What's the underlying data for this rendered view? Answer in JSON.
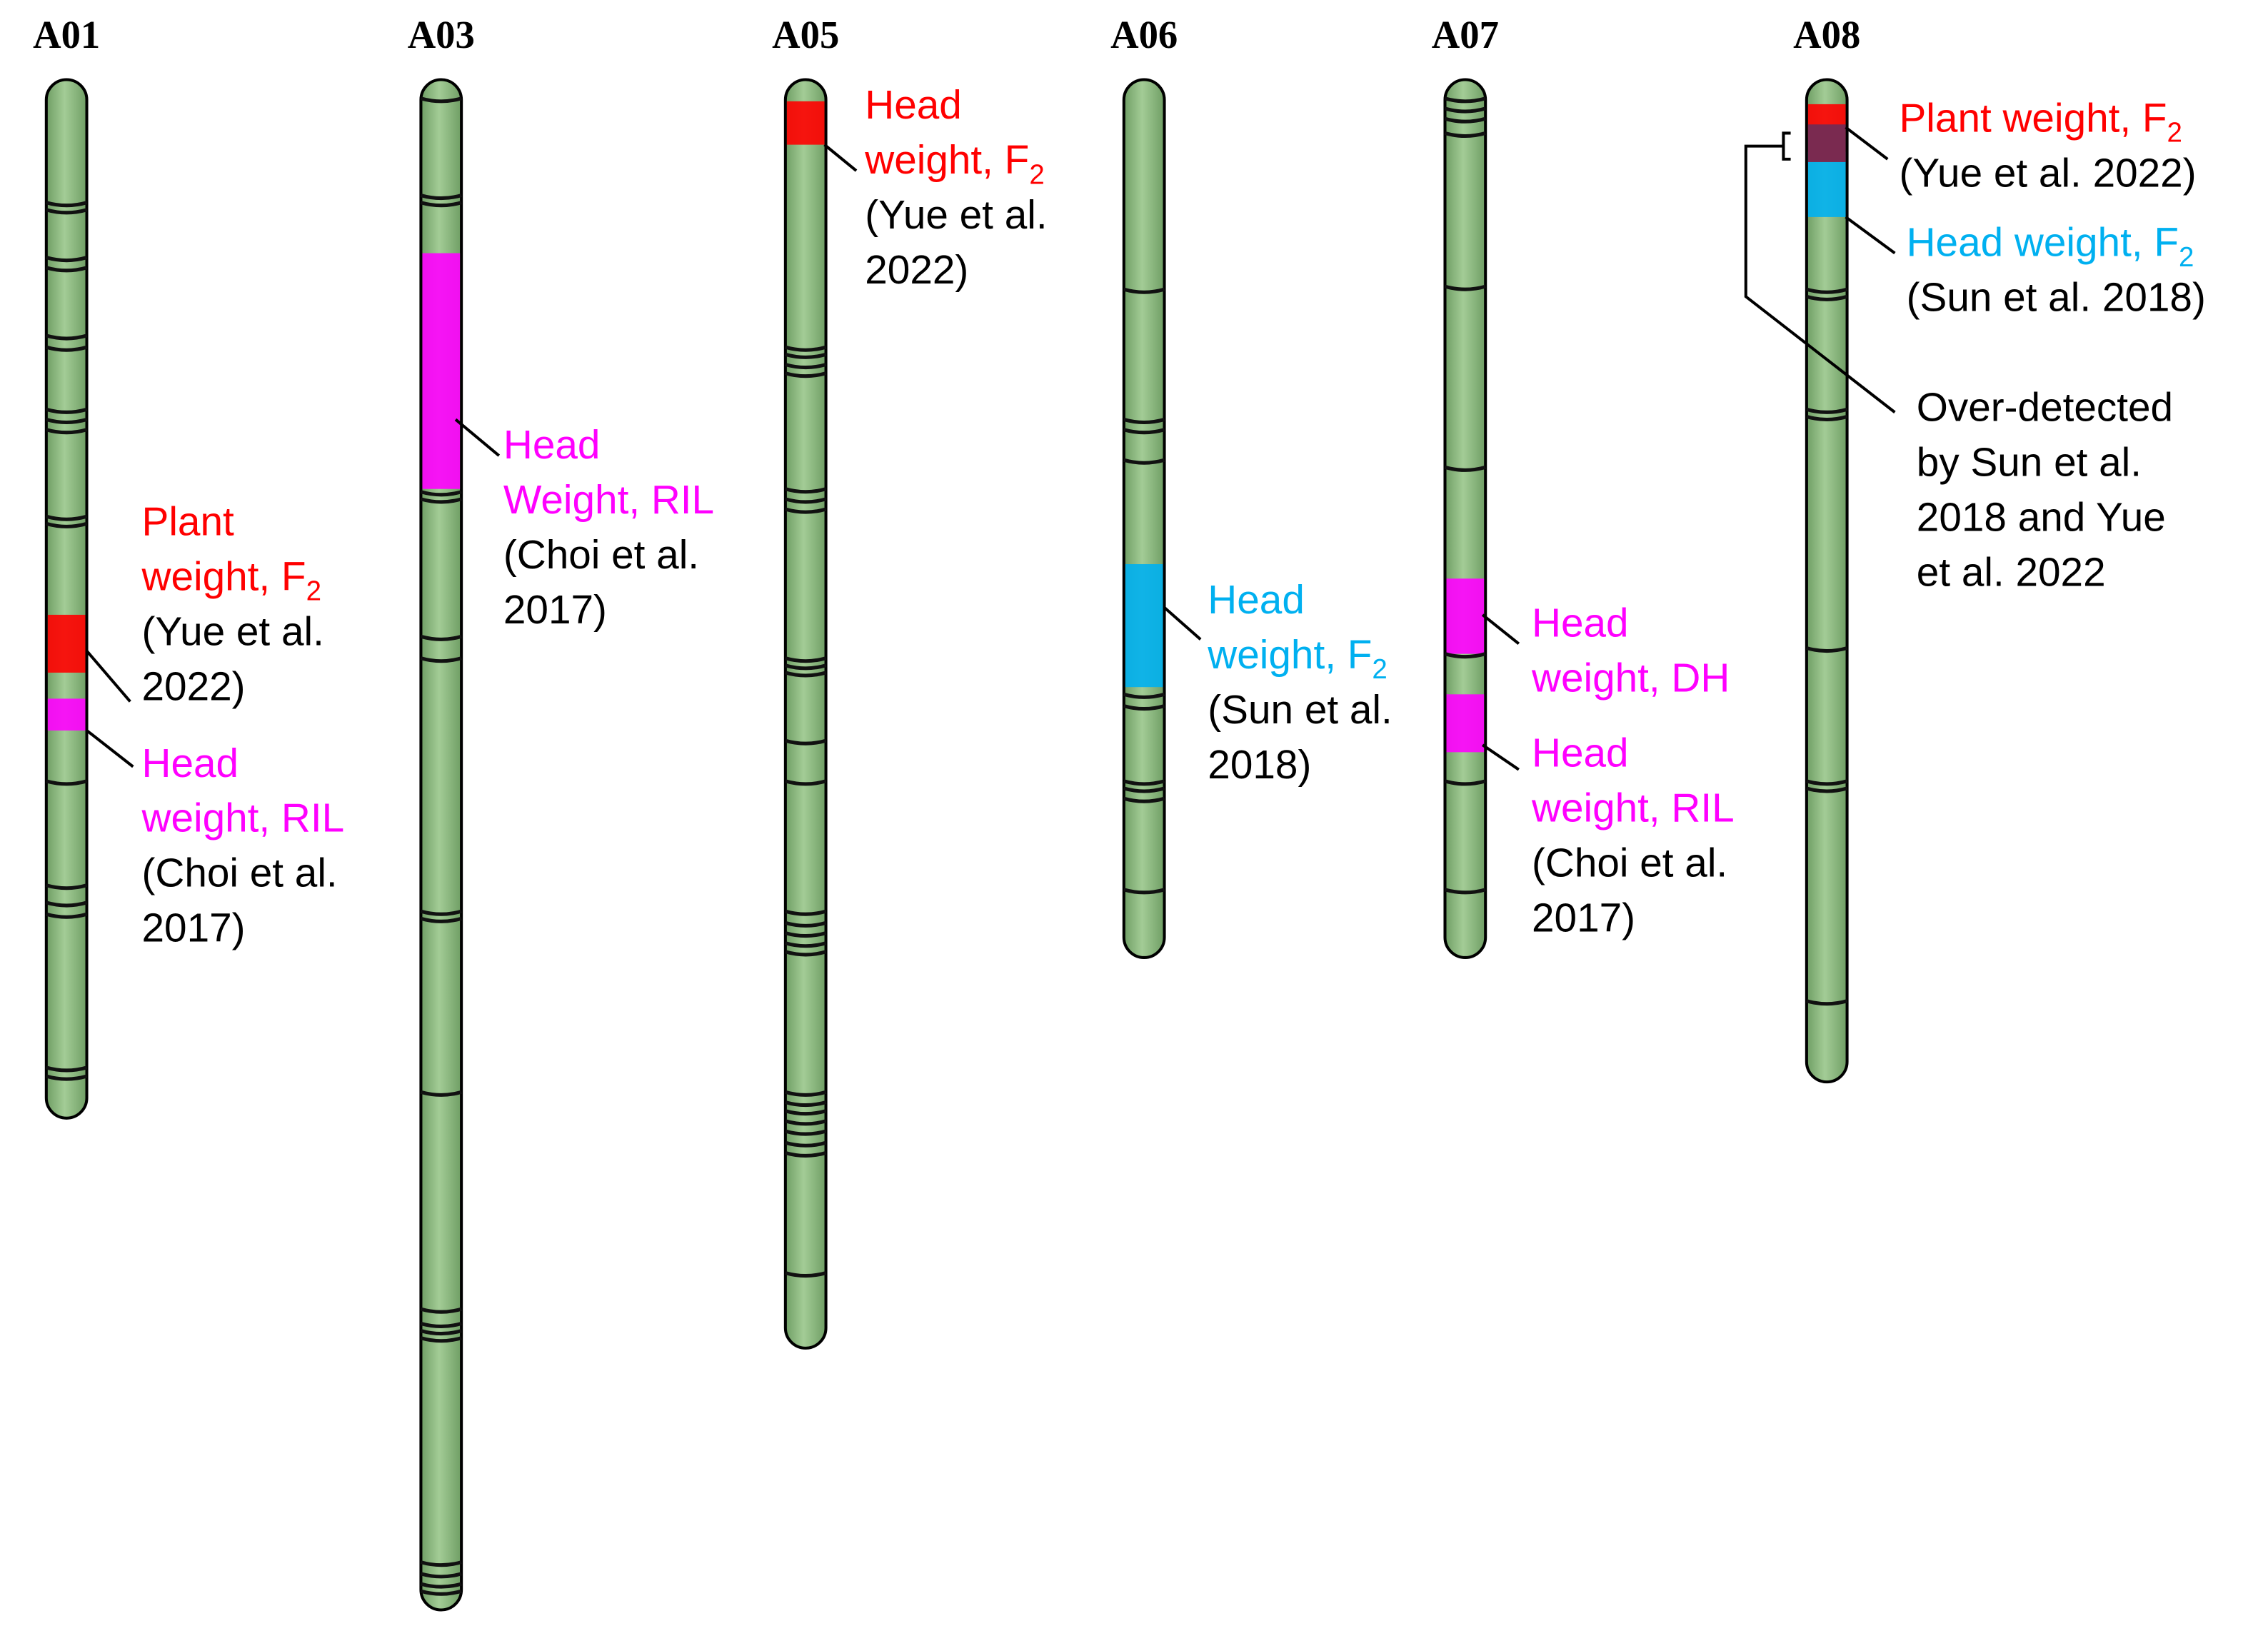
{
  "chromosomes": [
    {
      "name": "A01",
      "qtls": [
        {
          "trait": [
            "Plant",
            "weight, F"
          ],
          "sub": "2",
          "ref": [
            "(Yue et al.",
            "2022)"
          ],
          "color": "#ff0000"
        },
        {
          "trait": [
            "Head",
            "weight, RIL"
          ],
          "ref": [
            "(Choi et al.",
            "2017)"
          ],
          "color": "#ff00ff"
        }
      ]
    },
    {
      "name": "A03",
      "qtls": [
        {
          "trait": [
            "Head",
            "Weight, RIL"
          ],
          "ref": [
            "(Choi et al.",
            "2017)"
          ],
          "color": "#ff00ff"
        }
      ]
    },
    {
      "name": "A05",
      "qtls": [
        {
          "trait": [
            "Head",
            "weight, F"
          ],
          "sub": "2",
          "ref": [
            "(Yue et al.",
            "2022)"
          ],
          "color": "#ff0000"
        }
      ]
    },
    {
      "name": "A06",
      "qtls": [
        {
          "trait": [
            "Head",
            "weight, F"
          ],
          "sub": "2",
          "ref": [
            "(Sun et al.",
            "2018)"
          ],
          "color": "#00b0f0"
        }
      ]
    },
    {
      "name": "A07",
      "qtls": [
        {
          "trait": [
            "Head",
            "weight, DH"
          ],
          "color": "#ff00ff"
        },
        {
          "trait": [
            "Head",
            "weight, RIL"
          ],
          "ref": [
            "(Choi et al.",
            "2017)"
          ],
          "color": "#ff00ff"
        }
      ]
    },
    {
      "name": "A08",
      "qtls": [
        {
          "trait": [
            "Plant weight, F"
          ],
          "sub": "2",
          "ref": [
            "(Yue et al. 2022)"
          ],
          "color": "#ff0000"
        },
        {
          "trait": [
            "Head weight, F"
          ],
          "sub": "2",
          "ref": [
            "(Sun et al. 2018)"
          ],
          "color": "#00b0f0"
        }
      ],
      "note": [
        "Over-detected",
        "by Sun et al.",
        "2018 and Yue",
        "et al. 2022"
      ]
    }
  ]
}
